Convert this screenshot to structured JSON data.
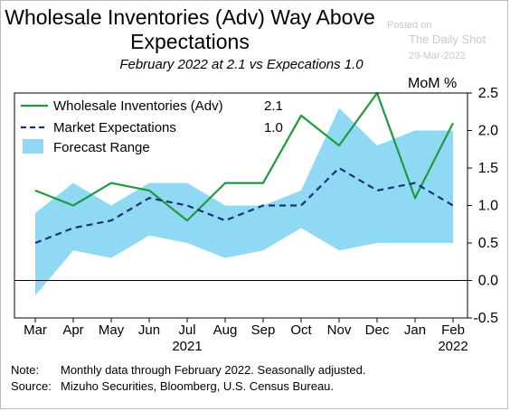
{
  "header": {
    "title_line1": "Wholesale Inventories (Adv) Way Above",
    "title_line2": "Expectations",
    "subtitle": "February 2022 at 2.1 vs Expecations 1.0"
  },
  "watermark": {
    "posted": "Posted on",
    "source": "The Daily Shot",
    "date": "29-Mar-2022"
  },
  "notes": {
    "note_key": "Note:",
    "note_text": "Monthly data through February 2022. Seasonally adjusted.",
    "source_key": "Source:",
    "source_text": "Mizuho Securities, Bloomberg, U.S. Census Bureau."
  },
  "chart_data": {
    "type": "line",
    "title": "Wholesale Inventories (Adv) Way Above Expectations",
    "ylabel": "MoM %",
    "ylim": [
      -0.5,
      2.5
    ],
    "yticks": [
      -0.5,
      0.0,
      0.5,
      1.0,
      1.5,
      2.0,
      2.5
    ],
    "ytick_labels": [
      "-0.5",
      "0.0",
      "0.5",
      "1.0",
      "1.5",
      "2.0",
      "2.5"
    ],
    "categories": [
      "Mar",
      "Apr",
      "May",
      "Jun",
      "Jul",
      "Aug",
      "Sep",
      "Oct",
      "Nov",
      "Dec",
      "Jan",
      "Feb"
    ],
    "year_labels": [
      {
        "category": "Jul",
        "label": "2021"
      },
      {
        "category": "Feb",
        "label": "2022"
      }
    ],
    "zero_line": true,
    "legend_position": "top-left",
    "series": [
      {
        "name": "Wholesale Inventories (Adv)",
        "legend_value": "2.1",
        "style": "solid",
        "color": "#1f9a3f",
        "values": [
          1.2,
          1.0,
          1.3,
          1.2,
          0.8,
          1.3,
          1.3,
          2.2,
          1.8,
          2.5,
          1.1,
          2.1
        ]
      },
      {
        "name": "Market Expectations",
        "legend_value": "1.0",
        "style": "dashed",
        "color": "#1a2f7a",
        "values": [
          0.5,
          0.7,
          0.8,
          1.1,
          1.0,
          0.8,
          1.0,
          1.0,
          1.5,
          1.2,
          1.3,
          1.0
        ]
      }
    ],
    "range": {
      "name": "Forecast Range",
      "color": "#8fd9f5",
      "low": [
        -0.2,
        0.4,
        0.3,
        0.6,
        0.5,
        0.3,
        0.4,
        0.7,
        0.4,
        0.5,
        0.5,
        0.5
      ],
      "high": [
        0.9,
        1.3,
        1.0,
        1.3,
        1.3,
        1.0,
        1.0,
        1.2,
        2.3,
        1.8,
        2.0,
        2.0
      ]
    }
  }
}
